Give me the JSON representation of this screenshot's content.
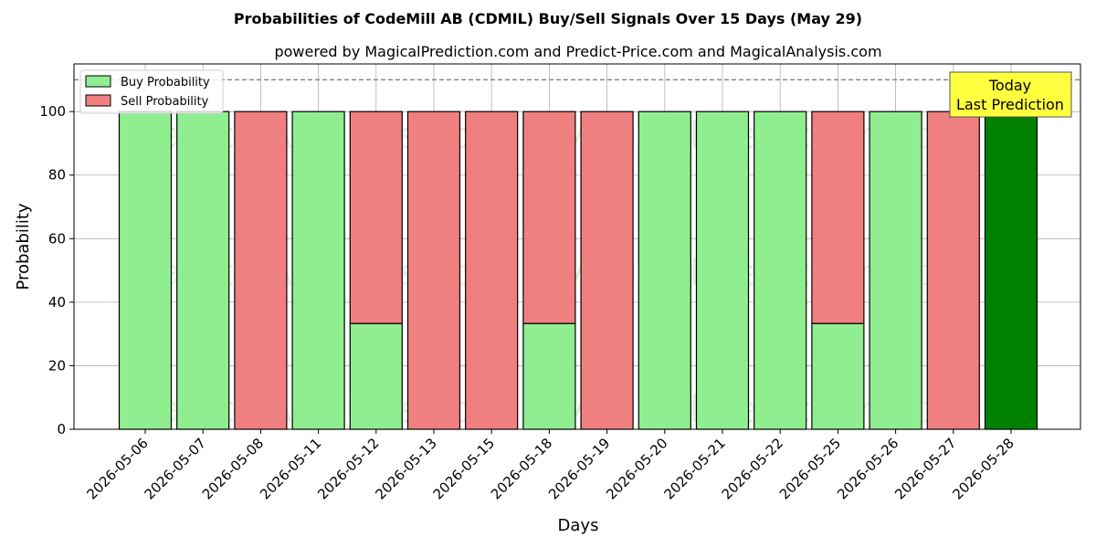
{
  "chart_data": {
    "type": "bar",
    "stacked": true,
    "title": "Probabilities of CodeMill AB (CDMIL) Buy/Sell Signals Over 15 Days (May 29)",
    "subtitle": "powered by MagicalPrediction.com and Predict-Price.com and MagicalAnalysis.com",
    "xlabel": "Days",
    "ylabel": "Probability",
    "ylim": [
      0,
      115
    ],
    "yticks": [
      0,
      20,
      40,
      60,
      80,
      100
    ],
    "grid": true,
    "legend_position": "top-left",
    "reference_line": 110,
    "categories": [
      "2026-05-06",
      "2026-05-07",
      "2026-05-08",
      "2026-05-11",
      "2026-05-12",
      "2026-05-13",
      "2026-05-15",
      "2026-05-18",
      "2026-05-19",
      "2026-05-20",
      "2026-05-21",
      "2026-05-22",
      "2026-05-25",
      "2026-05-26",
      "2026-05-27",
      "2026-05-28"
    ],
    "series": [
      {
        "name": "Buy Probability",
        "color": "#90ee90",
        "values": [
          100,
          100,
          0,
          100,
          33.3,
          0,
          0,
          33.3,
          0,
          100,
          100,
          100,
          33.3,
          100,
          0,
          100
        ]
      },
      {
        "name": "Sell Probability",
        "color": "#f08080",
        "values": [
          0,
          0,
          100,
          0,
          66.7,
          100,
          100,
          66.7,
          100,
          0,
          0,
          0,
          66.7,
          0,
          100,
          0
        ]
      }
    ],
    "highlight": {
      "index": 15,
      "color": "#008000"
    },
    "annotation": {
      "lines": [
        "Today",
        "Last Prediction"
      ],
      "color": "#ffff40"
    },
    "watermarks": [
      "MagicalAnalysis.com",
      "MagicalPrediction.com"
    ]
  }
}
